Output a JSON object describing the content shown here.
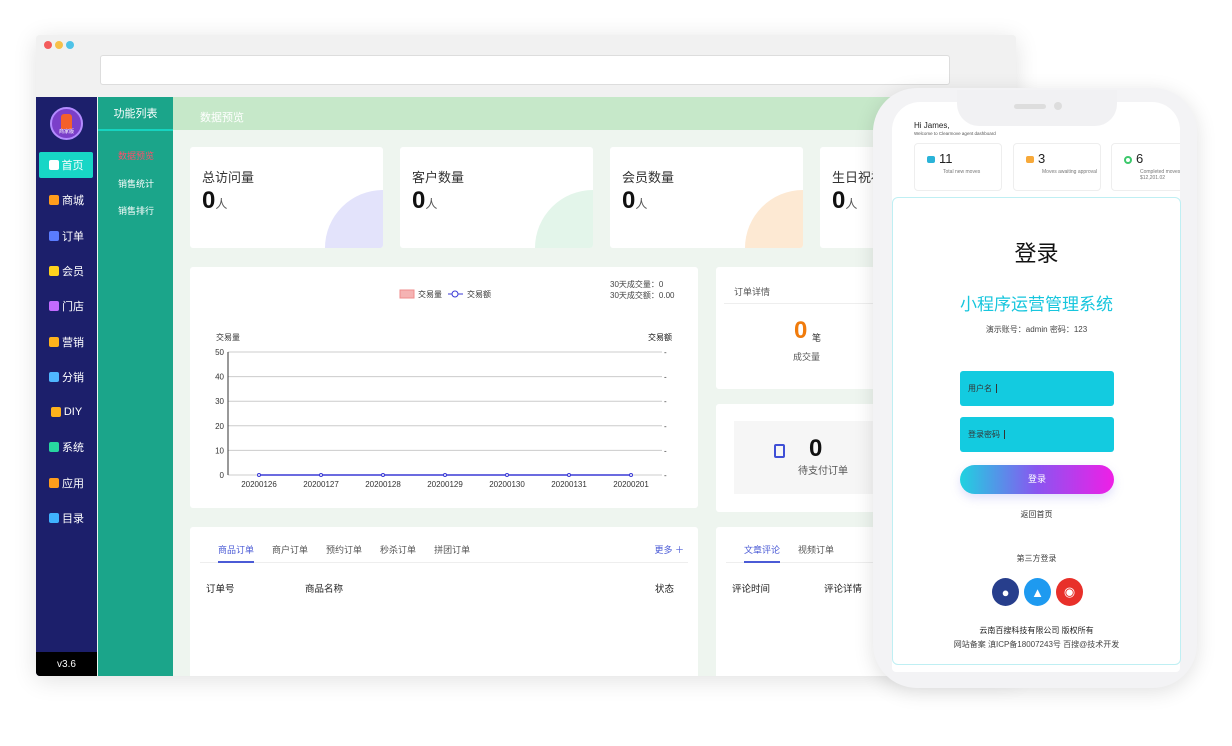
{
  "sidebar": {
    "version": "v3.6",
    "avatar_label": "商家版",
    "items": [
      {
        "label": "首页",
        "icon": "link-icon",
        "color": "#17d6c6"
      },
      {
        "label": "商城",
        "icon": "shop-icon",
        "color": "#ff9d1c"
      },
      {
        "label": "订单",
        "icon": "bag-icon",
        "color": "#5a7cff"
      },
      {
        "label": "会员",
        "icon": "diamond-icon",
        "color": "#ffd21c"
      },
      {
        "label": "门店",
        "icon": "store-icon",
        "color": "#c36bff"
      },
      {
        "label": "营销",
        "icon": "coins-icon",
        "color": "#ffb21c"
      },
      {
        "label": "分销",
        "icon": "share-icon",
        "color": "#4fb6ff"
      },
      {
        "label": "DIY",
        "icon": "wrench-icon",
        "color": "#ffb21c"
      },
      {
        "label": "系统",
        "icon": "shield-icon",
        "color": "#27d6a0"
      },
      {
        "label": "应用",
        "icon": "grid-icon",
        "color": "#ff9d1c"
      },
      {
        "label": "目录",
        "icon": "folder-icon",
        "color": "#3fb2ff"
      }
    ]
  },
  "submenu": {
    "title": "功能列表",
    "items": [
      "数据预览",
      "销售统计",
      "销售排行"
    ]
  },
  "header": {
    "title": "数据预览"
  },
  "stats": [
    {
      "title": "总访问量",
      "value": "0",
      "unit": "人",
      "color": "#e3e3fb"
    },
    {
      "title": "客户数量",
      "value": "0",
      "unit": "人",
      "color": "#e3f5ea"
    },
    {
      "title": "会员数量",
      "value": "0",
      "unit": "人",
      "color": "#fde9d3"
    },
    {
      "title": "生日祝福",
      "value": "0",
      "unit": "人",
      "color": "#eee"
    }
  ],
  "chart_data": {
    "type": "bar",
    "legend": [
      "交易量",
      "交易额"
    ],
    "ylabel_left": "交易量",
    "ylabel_right": "交易额",
    "ylim": [
      0,
      50
    ],
    "yticks": [
      0,
      10,
      20,
      30,
      40,
      50
    ],
    "categories": [
      "20200126",
      "20200127",
      "20200128",
      "20200129",
      "20200130",
      "20200131",
      "20200201"
    ],
    "series": [
      {
        "name": "交易量",
        "values": [
          0,
          0,
          0,
          0,
          0,
          0,
          0
        ]
      },
      {
        "name": "交易额",
        "values": [
          0,
          0,
          0,
          0,
          0,
          0,
          0
        ]
      }
    ],
    "summary": [
      "30天成交量：0",
      "30天成交额：0.00"
    ]
  },
  "order_detail": {
    "title": "订单详情",
    "value": "0",
    "unit": "笔",
    "label": "成交量"
  },
  "pending": {
    "value": "0",
    "label": "待支付订单"
  },
  "orders": {
    "tabs": [
      "商品订单",
      "商户订单",
      "预约订单",
      "秒杀订单",
      "拼团订单"
    ],
    "more": "更多 ＋",
    "columns": [
      "订单号",
      "商品名称",
      "状态"
    ]
  },
  "comments": {
    "tabs": [
      "文章评论",
      "视频订单"
    ],
    "columns": [
      "评论时间",
      "评论详情"
    ]
  },
  "phone": {
    "greeting": "Hi James,",
    "welcome": "Welcome to Clearmove agent dashboard",
    "cards": [
      {
        "value": "11",
        "label": "Total new moves"
      },
      {
        "value": "3",
        "label": "Moves awaiting approval"
      },
      {
        "value": "6",
        "label": "Completed moves worth $12,201.02"
      }
    ],
    "login": {
      "title": "登录",
      "system": "小程序运营管理系统",
      "demo": "演示账号：admin 密码：123",
      "username": "用户名",
      "password": "登录密码",
      "button": "登录",
      "back": "返回首页",
      "third_party": "第三方登录",
      "copyright": "云南百搜科技有限公司 版权所有",
      "icp": "网站备案 滇ICP备18007243号 百搜@技术开发"
    }
  }
}
